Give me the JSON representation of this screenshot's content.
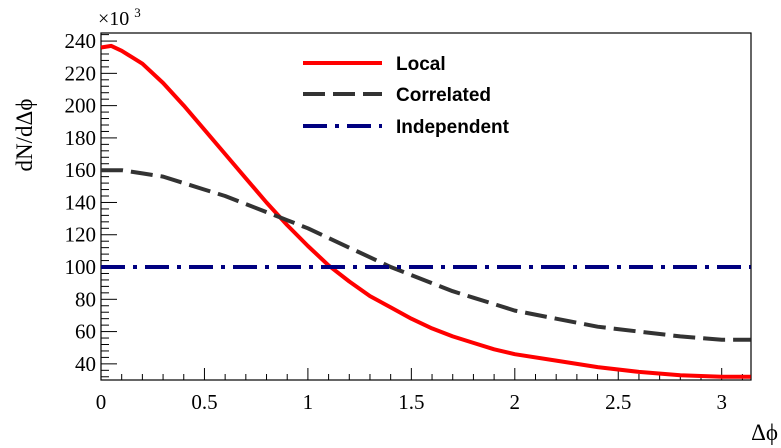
{
  "chart_data": {
    "type": "line",
    "xlabel": "Δϕ",
    "ylabel": "dN/dΔϕ",
    "y_multiplier_label": "×10",
    "y_multiplier_exponent": "3",
    "xlim": [
      0,
      3.1416
    ],
    "ylim": [
      30,
      245
    ],
    "x_ticks": [
      0,
      0.5,
      1,
      1.5,
      2,
      2.5,
      3
    ],
    "x_tick_labels": [
      "0",
      "0.5",
      "1",
      "1.5",
      "2",
      "2.5",
      "3"
    ],
    "y_ticks": [
      40,
      60,
      80,
      100,
      120,
      140,
      160,
      180,
      200,
      220,
      240
    ],
    "y_tick_labels": [
      "40",
      "60",
      "80",
      "100",
      "120",
      "140",
      "160",
      "180",
      "200",
      "220",
      "240"
    ],
    "legend_position": "top-center",
    "series": [
      {
        "name": "Local",
        "color": "#ff0000",
        "style": "solid",
        "x": [
          0,
          0.05,
          0.1,
          0.15,
          0.2,
          0.3,
          0.4,
          0.5,
          0.6,
          0.7,
          0.8,
          0.9,
          1.0,
          1.1,
          1.2,
          1.3,
          1.4,
          1.5,
          1.6,
          1.7,
          1.8,
          1.9,
          2.0,
          2.2,
          2.4,
          2.6,
          2.8,
          3.0,
          3.14
        ],
        "values": [
          236,
          237,
          234,
          230,
          226,
          214,
          200,
          185,
          170,
          155,
          140,
          126,
          113,
          101,
          91,
          82,
          75,
          68,
          62,
          57,
          53,
          49,
          46,
          42,
          38,
          35,
          33,
          32,
          32
        ]
      },
      {
        "name": "Correlated",
        "color": "#333333",
        "style": "dashed",
        "x": [
          0,
          0.1,
          0.2,
          0.3,
          0.4,
          0.5,
          0.6,
          0.7,
          0.8,
          0.9,
          1.0,
          1.1,
          1.2,
          1.3,
          1.4,
          1.5,
          1.6,
          1.7,
          1.8,
          1.9,
          2.0,
          2.2,
          2.4,
          2.6,
          2.8,
          3.0,
          3.14
        ],
        "values": [
          160,
          160,
          158,
          156,
          152,
          148,
          144,
          139,
          134,
          129,
          124,
          118,
          112,
          106,
          100,
          95,
          90,
          85,
          81,
          77,
          73,
          68,
          63,
          60,
          57,
          55,
          55
        ]
      },
      {
        "name": "Independent",
        "color": "#000080",
        "style": "dashdot",
        "x": [
          0,
          0.2,
          0.4,
          0.6,
          0.8,
          1.0,
          1.2,
          1.4,
          1.6,
          1.8,
          2.0,
          2.2,
          2.4,
          2.6,
          2.8,
          3.0,
          3.14
        ],
        "values": [
          100,
          100,
          100,
          100,
          100,
          100,
          100,
          100,
          100,
          100,
          100,
          100,
          100,
          100,
          100,
          100,
          100
        ]
      }
    ]
  }
}
